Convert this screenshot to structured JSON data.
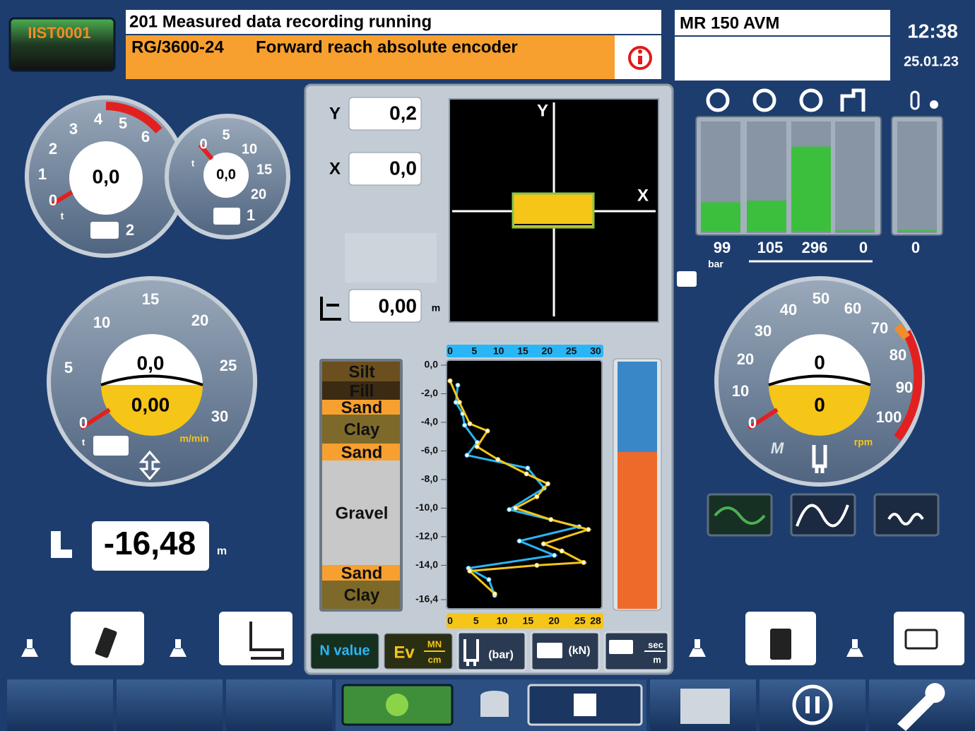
{
  "header": {
    "station": "IIST0001",
    "status": "201 Measured data recording running",
    "code": "RG/3600-24",
    "message": "Forward reach absolute encoder",
    "machine": "MR 150 AVM",
    "time": "12:38",
    "date": "25.01.23"
  },
  "gauge_load": {
    "ticks": [
      "0",
      "1",
      "2",
      "3",
      "4",
      "5",
      "6"
    ],
    "value": "0,0",
    "unit": "t",
    "winch": "2"
  },
  "gauge_load2": {
    "ticks": [
      "0",
      "5",
      "10",
      "15",
      "20"
    ],
    "value": "0,0",
    "unit": "t",
    "winch": "1"
  },
  "gauge_speed": {
    "ticks": [
      "0",
      "5",
      "10",
      "15",
      "20",
      "25",
      "30"
    ],
    "load": "0,0",
    "speed": "0,00",
    "unit_load": "t",
    "unit_speed": "m/min"
  },
  "depth": {
    "value": "-16,48",
    "unit": "m"
  },
  "inclination": {
    "y_label": "Y",
    "y_value": "0,2",
    "x_label": "X",
    "x_value": "0,0",
    "offset": "0,00",
    "offset_unit": "m",
    "axis_y": "Y",
    "axis_x": "X"
  },
  "profile": {
    "layers": [
      "Silt",
      "Fill",
      "Sand",
      "Clay",
      "Sand",
      "Gravel",
      "Sand",
      "Clay"
    ],
    "ylim": [
      0,
      -16.4
    ],
    "yticks": [
      {
        "value": 0,
        "label": "0,0"
      },
      {
        "value": -2,
        "label": "-2,0"
      },
      {
        "value": -4,
        "label": "-4,0"
      },
      {
        "value": -6,
        "label": "-6,0"
      },
      {
        "value": -8,
        "label": "-8,0"
      },
      {
        "value": -10,
        "label": "-10,0"
      },
      {
        "value": -12,
        "label": "-12,0"
      },
      {
        "value": -14,
        "label": "-14,0"
      },
      {
        "value": -16.4,
        "label": "-16,4"
      }
    ],
    "top_xlim": [
      0,
      30
    ],
    "top_xticks": [
      0,
      5,
      10,
      15,
      20,
      25,
      30
    ],
    "bottom_xlim": [
      0,
      28
    ],
    "bottom_xticks": [
      0,
      5,
      10,
      15,
      20,
      25,
      28
    ],
    "series": [
      {
        "color": "#29b6f6",
        "axis": "top",
        "depth": [
          -1.4,
          -2.6,
          -3.4,
          -4.2,
          -5.4,
          -6.3,
          -7.2,
          -8.6,
          -10.1,
          -11.3,
          -12.3,
          -13.3,
          -14.2,
          -15.0,
          -16.1
        ],
        "values": [
          1.6,
          1.2,
          2.6,
          3.0,
          5.6,
          3.5,
          16,
          19.4,
          12.2,
          26.6,
          14.3,
          21.5,
          3.8,
          8.0,
          9.2
        ]
      },
      {
        "color": "#f5c518",
        "axis": "bottom",
        "depth": [
          -1.1,
          -2.6,
          -4.1,
          -4.6,
          -5.7,
          -6.6,
          -7.6,
          -8.3,
          -9.2,
          -10.0,
          -10.8,
          -11.5,
          -12.5,
          -13.0,
          -13.8,
          -14.0,
          -14.4,
          -16.0
        ],
        "values": [
          0,
          1.8,
          3.8,
          7.2,
          5.2,
          9.2,
          14.7,
          18.8,
          16.7,
          12.6,
          19.4,
          26.6,
          18,
          21.5,
          25.7,
          16.7,
          3.8,
          8.6
        ]
      }
    ]
  },
  "buttons": {
    "n_value": "N value",
    "ev": "Ev",
    "ev_unit_top": "MN",
    "ev_unit_bottom": "cm",
    "bar": "(bar)",
    "kn": "(kN)",
    "sec_top": "sec",
    "sec_bottom": "m"
  },
  "pressures": {
    "values": [
      99,
      105,
      296,
      0
    ],
    "aux": 0,
    "unit": "bar"
  },
  "rpm_gauge": {
    "ticks": [
      "0",
      "10",
      "20",
      "30",
      "40",
      "50",
      "60",
      "70",
      "80",
      "90",
      "100"
    ],
    "torque": "0",
    "rpm": "0",
    "torque_label": "M",
    "unit": "rpm"
  }
}
